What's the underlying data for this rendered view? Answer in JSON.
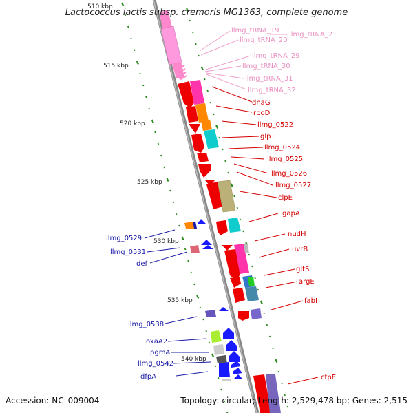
{
  "title": "Lactococcus lactis subsp. cremoris MG1363, complete genome",
  "footer": {
    "accession": "Accession: NC_009004",
    "topology": "Topology: circular; Length: 2,529,478 bp; Genes: 2,515"
  },
  "scale_labels": [
    "510 kbp",
    "515 kbp",
    "520 kbp",
    "525 kbp",
    "530 kbp",
    "535 kbp",
    "540 kbp"
  ],
  "colors": {
    "backbone": "#888888",
    "tick": "#2a8a1e",
    "pink_label": "#e890c0",
    "red_label": "#d40000",
    "blue_label": "#1a1aa6"
  },
  "labels": {
    "pink": [
      "llmg_tRNA_19",
      "llmg_tRNA_20",
      "llmg_tRNA_21",
      "llmg_tRNA_29",
      "llmg_tRNA_30",
      "llmg_tRNA_31",
      "llmg_tRNA_32"
    ],
    "red": [
      "dnaG",
      "rpoD",
      "llmg_0522",
      "glpT",
      "llmg_0524",
      "llmg_0525",
      "llmg_0526",
      "llmg_0527",
      "clpE",
      "gapA",
      "nudH",
      "uvrB",
      "gltS",
      "argE",
      "fabI",
      "ctpE"
    ],
    "blue": [
      "llmg_0529",
      "llmg_0531",
      "def",
      "llmg_0538",
      "oxaA2",
      "pgmA",
      "llmg_0542",
      "dfpA"
    ]
  }
}
